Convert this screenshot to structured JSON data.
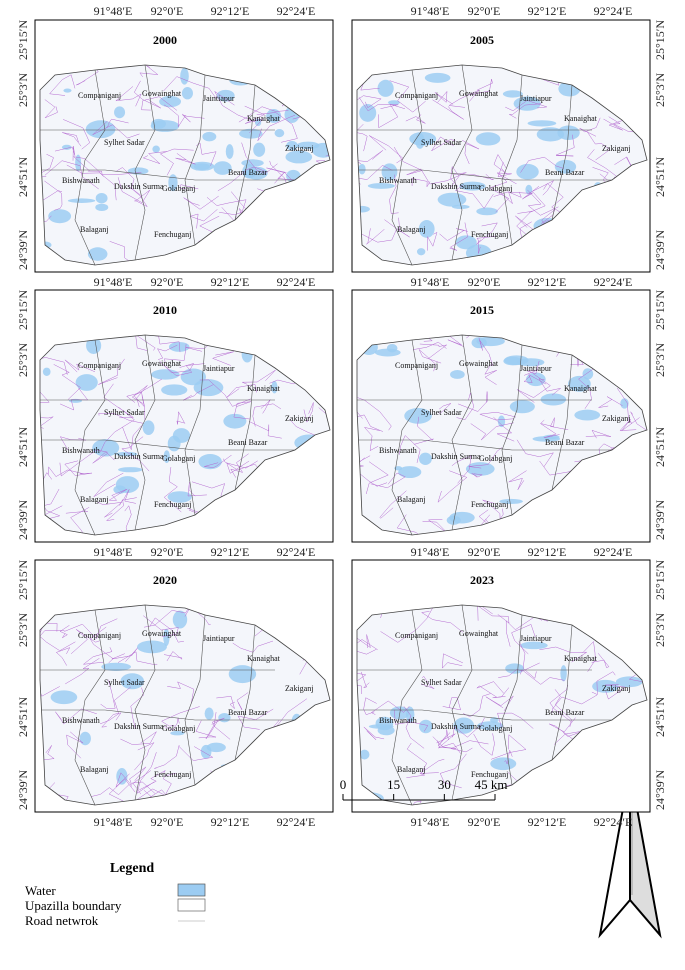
{
  "panels": [
    {
      "year": "2000"
    },
    {
      "year": "2005"
    },
    {
      "year": "2010"
    },
    {
      "year": "2015"
    },
    {
      "year": "2020"
    },
    {
      "year": "2023"
    }
  ],
  "x_labels": [
    "91°48′E",
    "92°0′E",
    "92°12′E",
    "92°24′E"
  ],
  "y_labels": [
    "25°15′N",
    "25°3′N",
    "24°51′N",
    "24°39′N"
  ],
  "upazilas": [
    "Companiganj",
    "Gowainghat",
    "Jaintiapur",
    "Kanaighat",
    "Sylhet Sadar",
    "Zakiganj",
    "Bishwanath",
    "Dakshin Surma",
    "Golabganj",
    "Beani Bazar",
    "Balaganj",
    "Fenchuganj"
  ],
  "legend": {
    "title": "Legend",
    "items": [
      "Water",
      "Upazilla boundary",
      "Road netwrok"
    ]
  },
  "scale_bar": {
    "ticks": [
      0,
      15,
      30,
      {
        "value": 45,
        "label": "45 km"
      }
    ]
  }
}
